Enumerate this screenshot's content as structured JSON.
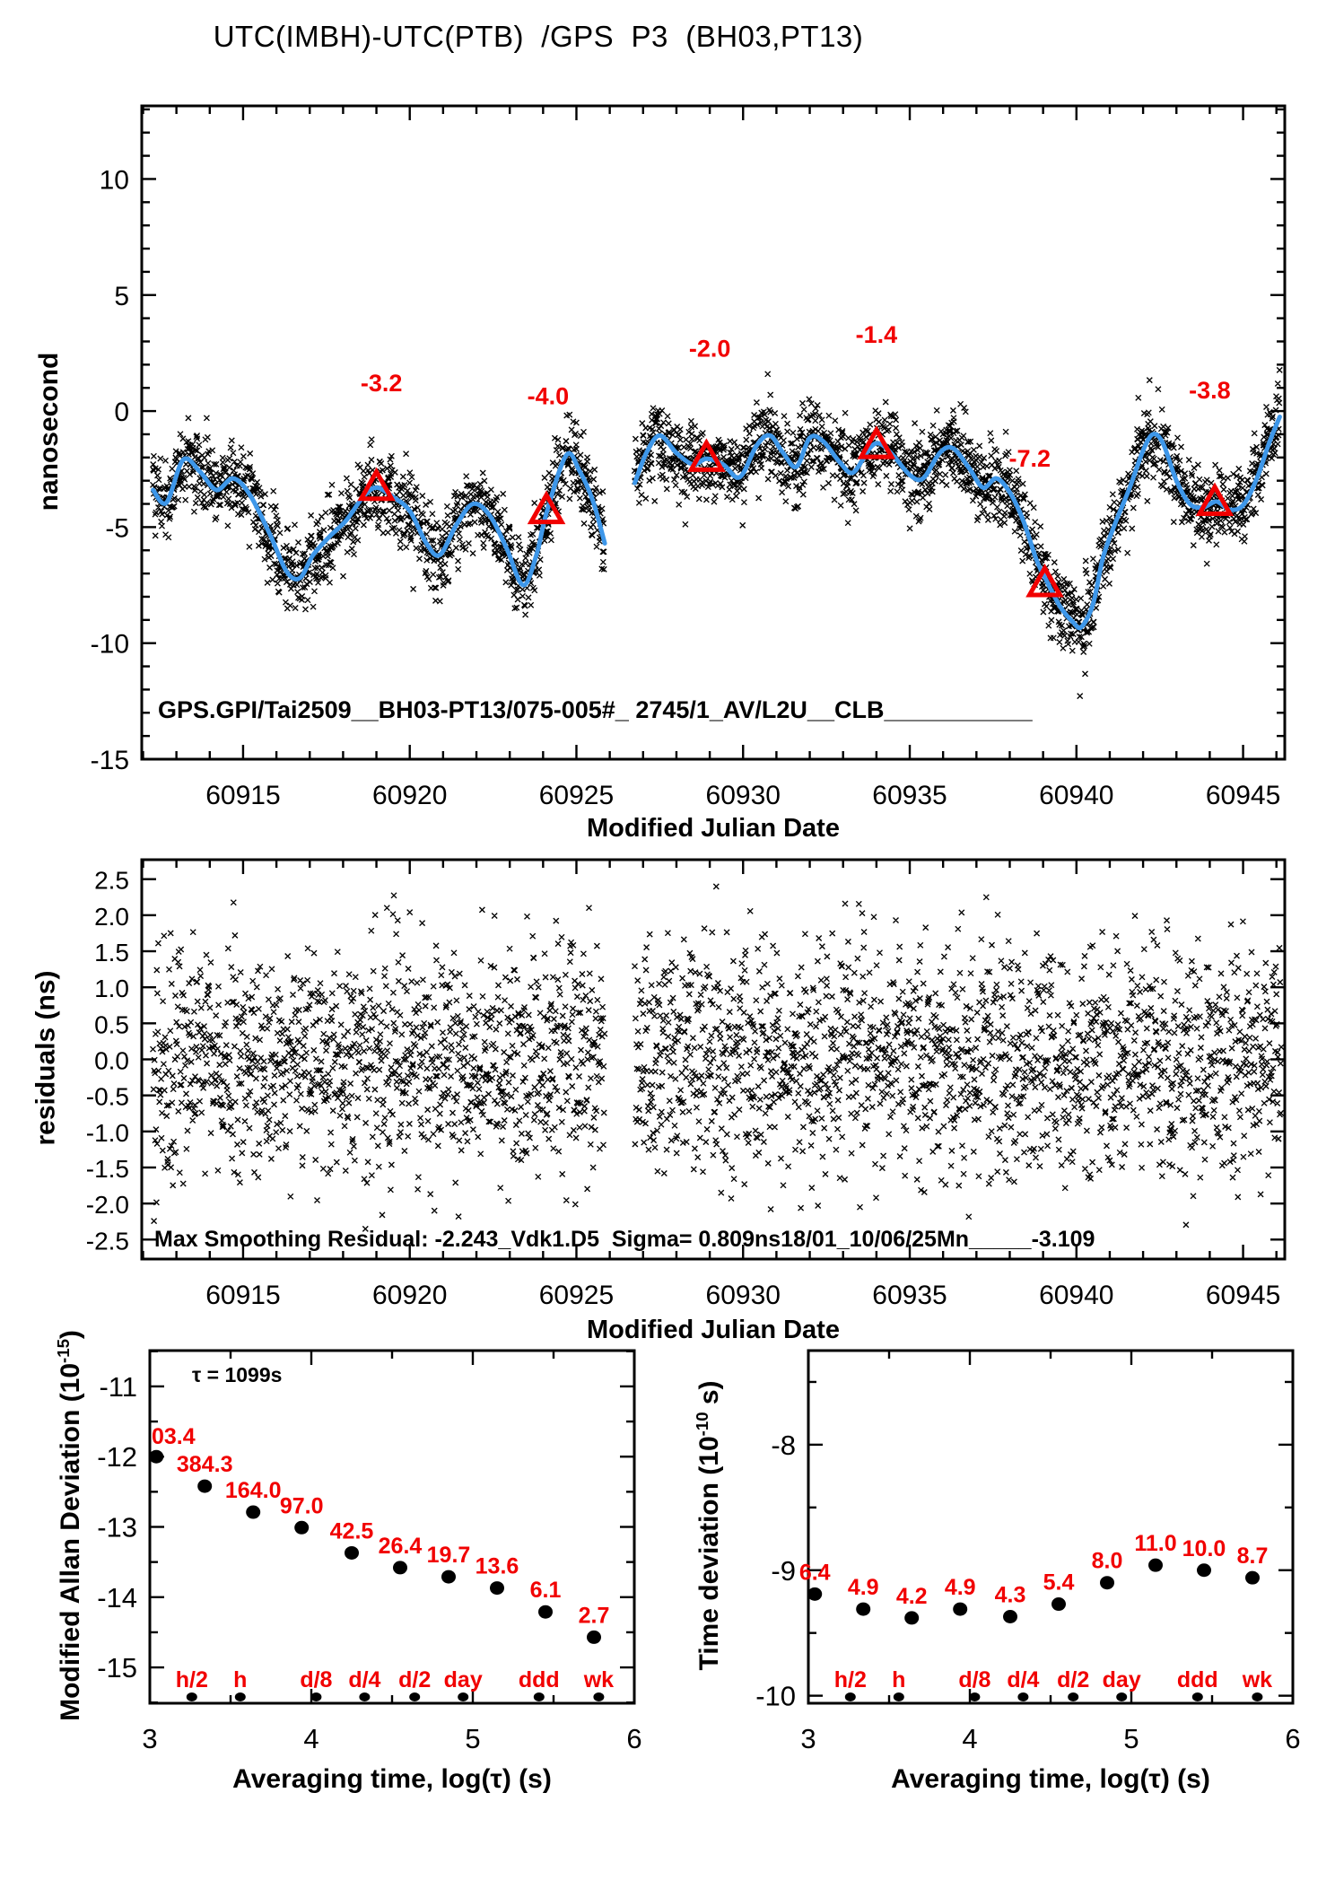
{
  "title": "UTC(IMBH)-UTC(PTB)  /GPS  P3  (BH03,PT13)",
  "colors": {
    "line": "#3e97e9",
    "annotation": "#f10000",
    "marker": "#000000"
  },
  "chart_data": [
    {
      "id": "phase",
      "type": "scatter",
      "title": "UTC(IMBH)-UTC(PTB)  /GPS  P3  (BH03,PT13)",
      "xlabel": "Modified Julian Date",
      "ylabel": "nanosecond",
      "xlim": [
        60911.96,
        60946.25
      ],
      "ylim": [
        -15,
        13.15
      ],
      "grid": false,
      "xticks": {
        "major": [
          {
            "v": 60915,
            "l": "60915"
          },
          {
            "v": 60920,
            "l": "60920"
          },
          {
            "v": 60925,
            "l": "60925"
          },
          {
            "v": 60930,
            "l": "60930"
          },
          {
            "v": 60935,
            "l": "60935"
          },
          {
            "v": 60940,
            "l": "60940"
          },
          {
            "v": 60945,
            "l": "60945"
          }
        ],
        "minor_step": 1
      },
      "yticks": {
        "major": [
          {
            "v": 10,
            "l": "10"
          },
          {
            "v": 5,
            "l": "5"
          },
          {
            "v": 0,
            "l": "0"
          },
          {
            "v": -5,
            "l": "-5"
          },
          {
            "v": -10,
            "l": "-10"
          },
          {
            "v": -15,
            "l": "-15"
          }
        ],
        "minor_step": 1
      },
      "info_text": "GPS.GPI/Tai2509__BH03-PT13/075-005#_ 2745/1_AV/L2U__CLB___________",
      "annotations": [
        {
          "label": "-3.2",
          "label_x": 60919.15,
          "label_y": 0.85,
          "tri_x": 60919.0,
          "tri_y": -3.35
        },
        {
          "label": "-4.0",
          "label_x": 60924.15,
          "label_y": 0.3,
          "tri_x": 60924.1,
          "tri_y": -4.35
        },
        {
          "label": "-2.0",
          "label_x": 60929.0,
          "label_y": 2.35,
          "tri_x": 60928.9,
          "tri_y": -2.1
        },
        {
          "label": "-1.4",
          "label_x": 60934.0,
          "label_y": 2.95,
          "tri_x": 60934.0,
          "tri_y": -1.55
        },
        {
          "label": "-7.2",
          "label_x": 60938.6,
          "label_y": -2.4,
          "tri_x": 60939.05,
          "tri_y": -7.5
        },
        {
          "label": "-3.8",
          "label_x": 60944.0,
          "label_y": 0.55,
          "tri_x": 60944.15,
          "tri_y": -4.0
        }
      ],
      "smooth_segments": [
        [
          [
            60912.3,
            -3.4
          ],
          [
            60912.7,
            -3.95
          ],
          [
            60913.2,
            -2.1
          ],
          [
            60913.7,
            -2.6
          ],
          [
            60914.2,
            -3.4
          ],
          [
            60914.7,
            -2.9
          ],
          [
            60915.2,
            -3.6
          ],
          [
            60915.8,
            -5.3
          ],
          [
            60916.3,
            -6.9
          ],
          [
            60916.7,
            -7.2
          ],
          [
            60917.1,
            -6.2
          ],
          [
            60917.6,
            -5.4
          ],
          [
            60918.1,
            -4.7
          ],
          [
            60918.6,
            -3.7
          ],
          [
            60919.0,
            -3.3
          ],
          [
            60919.5,
            -3.7
          ],
          [
            60920.0,
            -4.3
          ],
          [
            60920.5,
            -5.7
          ],
          [
            60920.9,
            -6.2
          ],
          [
            60921.4,
            -4.9
          ],
          [
            60921.9,
            -4.0
          ],
          [
            60922.4,
            -4.5
          ],
          [
            60922.9,
            -5.9
          ],
          [
            60923.4,
            -7.5
          ],
          [
            60923.8,
            -6.2
          ],
          [
            60924.1,
            -4.4
          ],
          [
            60924.7,
            -1.9
          ],
          [
            60925.1,
            -2.6
          ],
          [
            60925.5,
            -3.9
          ],
          [
            60925.85,
            -5.7
          ]
        ],
        [
          [
            60926.75,
            -3.1
          ],
          [
            60927.1,
            -1.8
          ],
          [
            60927.5,
            -1.05
          ],
          [
            60928.0,
            -1.8
          ],
          [
            60928.5,
            -2.3
          ],
          [
            60928.9,
            -2.05
          ],
          [
            60929.4,
            -2.3
          ],
          [
            60929.9,
            -2.85
          ],
          [
            60930.4,
            -1.5
          ],
          [
            60930.8,
            -1.05
          ],
          [
            60931.2,
            -1.8
          ],
          [
            60931.6,
            -2.4
          ],
          [
            60932.0,
            -1.15
          ],
          [
            60932.4,
            -1.3
          ],
          [
            60932.9,
            -2.2
          ],
          [
            60933.3,
            -2.65
          ],
          [
            60933.8,
            -1.6
          ],
          [
            60934.1,
            -1.4
          ],
          [
            60934.5,
            -1.9
          ],
          [
            60935.0,
            -2.75
          ],
          [
            60935.4,
            -2.9
          ],
          [
            60935.9,
            -1.8
          ],
          [
            60936.3,
            -1.6
          ],
          [
            60936.8,
            -2.5
          ],
          [
            60937.2,
            -3.3
          ],
          [
            60937.6,
            -2.9
          ],
          [
            60938.0,
            -3.5
          ],
          [
            60938.4,
            -4.7
          ],
          [
            60938.8,
            -6.4
          ],
          [
            60939.1,
            -7.3
          ],
          [
            60939.5,
            -8.4
          ],
          [
            60939.9,
            -9.1
          ],
          [
            60940.15,
            -9.3
          ],
          [
            60940.5,
            -8.3
          ],
          [
            60940.8,
            -6.3
          ],
          [
            60941.2,
            -4.7
          ],
          [
            60941.6,
            -3.3
          ],
          [
            60942.0,
            -1.7
          ],
          [
            60942.3,
            -1.0
          ],
          [
            60942.6,
            -1.4
          ],
          [
            60943.0,
            -3.0
          ],
          [
            60943.4,
            -4.0
          ],
          [
            60943.8,
            -4.15
          ],
          [
            60944.2,
            -3.9
          ],
          [
            60944.6,
            -4.25
          ],
          [
            60945.0,
            -4.05
          ],
          [
            60945.4,
            -2.95
          ],
          [
            60945.8,
            -1.3
          ],
          [
            60946.1,
            -0.25
          ]
        ]
      ],
      "scatter_params": {
        "step": 0.022,
        "sigma": 0.85,
        "seed": 1234567
      }
    },
    {
      "id": "residuals",
      "type": "scatter",
      "xlabel": "Modified Julian Date",
      "ylabel": "residuals (ns)",
      "xlim": [
        60911.96,
        60946.25
      ],
      "ylim": [
        -2.77,
        2.77
      ],
      "grid": false,
      "xticks": {
        "major": [
          {
            "v": 60915,
            "l": "60915"
          },
          {
            "v": 60920,
            "l": "60920"
          },
          {
            "v": 60925,
            "l": "60925"
          },
          {
            "v": 60930,
            "l": "60930"
          },
          {
            "v": 60935,
            "l": "60935"
          },
          {
            "v": 60940,
            "l": "60940"
          },
          {
            "v": 60945,
            "l": "60945"
          }
        ],
        "minor_step": 1
      },
      "yticks": {
        "major": [
          {
            "v": 2.5,
            "l": "2.5"
          },
          {
            "v": 2.0,
            "l": "2.0"
          },
          {
            "v": 1.5,
            "l": "1.5"
          },
          {
            "v": 1.0,
            "l": "1.0"
          },
          {
            "v": 0.5,
            "l": "0.5"
          },
          {
            "v": 0.0,
            "l": "0.0"
          },
          {
            "v": -0.5,
            "l": "-0.5"
          },
          {
            "v": -1.0,
            "l": "-1.0"
          },
          {
            "v": -1.5,
            "l": "-1.5"
          },
          {
            "v": -2.0,
            "l": "-2.0"
          },
          {
            "v": -2.5,
            "l": "-2.5"
          }
        ]
      },
      "info_text": "Max Smoothing Residual: -2.243_Vdk1.D5  Sigma= 0.809ns18/01_10/06/25Mn_____-3.109",
      "sigma_ns": 0.809,
      "segments": [
        [
          60912.3,
          60925.85
        ],
        [
          60926.75,
          60946.15
        ]
      ],
      "scatter_params": {
        "step": 0.011,
        "sigma": 0.809,
        "clip": 2.4,
        "seed": 424242
      }
    },
    {
      "id": "mdev",
      "type": "scatter",
      "xlabel": "Averaging time, log(τ) (s)",
      "ylabel_parts": {
        "pre": "Modified Allan Deviation (10",
        "sup": "-15",
        "post": ")"
      },
      "tau_note": "τ = 1099s",
      "xlim": [
        3,
        6
      ],
      "ylim": [
        -15.51,
        -10.49
      ],
      "grid": false,
      "xticks": {
        "major": [
          {
            "v": 3,
            "l": "3"
          },
          {
            "v": 4,
            "l": "4"
          },
          {
            "v": 5,
            "l": "5"
          },
          {
            "v": 6,
            "l": "6"
          }
        ],
        "minor_step": 0.5
      },
      "yticks": {
        "major": [
          {
            "v": -11,
            "l": "-11"
          },
          {
            "v": -12,
            "l": "-12"
          },
          {
            "v": -13,
            "l": "-13"
          },
          {
            "v": -14,
            "l": "-14"
          },
          {
            "v": -15,
            "l": "-15"
          }
        ],
        "minor_step": 0.5
      },
      "x": [
        3.04,
        3.34,
        3.64,
        3.94,
        4.25,
        4.55,
        4.85,
        5.15,
        5.45,
        5.75
      ],
      "y": [
        -12.0,
        -12.42,
        -12.79,
        -13.01,
        -13.37,
        -13.58,
        -13.71,
        -13.87,
        -14.21,
        -14.57
      ],
      "labels": [
        "03.4",
        "384.3",
        "164.0",
        "97.0",
        "42.5",
        "26.4",
        "19.7",
        "13.6",
        "6.1",
        "2.7"
      ],
      "first_label_clipped": true,
      "time_markers": {
        "labels": [
          "h/2",
          "h",
          "d/8",
          "d/4",
          "d/2",
          "day",
          "ddd",
          "wk"
        ],
        "x": [
          3.26,
          3.56,
          4.03,
          4.33,
          4.64,
          4.94,
          5.41,
          5.78
        ]
      }
    },
    {
      "id": "tdev",
      "type": "scatter",
      "xlabel": "Averaging time, log(τ) (s)",
      "ylabel_parts": {
        "pre": "Time deviation (10",
        "sup": "-10",
        "post": " s)"
      },
      "xlim": [
        3,
        6
      ],
      "ylim": [
        -10.06,
        -7.25
      ],
      "grid": false,
      "xticks": {
        "major": [
          {
            "v": 3,
            "l": "3"
          },
          {
            "v": 4,
            "l": "4"
          },
          {
            "v": 5,
            "l": "5"
          },
          {
            "v": 6,
            "l": "6"
          }
        ],
        "minor_step": 0.5
      },
      "yticks": {
        "major": [
          {
            "v": -8,
            "l": "-8"
          },
          {
            "v": -9,
            "l": "-9"
          },
          {
            "v": -10,
            "l": "-10"
          }
        ],
        "minor_step": 0.5
      },
      "x": [
        3.04,
        3.34,
        3.64,
        3.94,
        4.25,
        4.55,
        4.85,
        5.15,
        5.45,
        5.75
      ],
      "y": [
        -9.19,
        -9.31,
        -9.38,
        -9.31,
        -9.37,
        -9.27,
        -9.1,
        -8.96,
        -9.0,
        -9.06
      ],
      "labels": [
        "6.4",
        "4.9",
        "4.2",
        "4.9",
        "4.3",
        "5.4",
        "8.0",
        "11.0",
        "10.0",
        "8.7"
      ],
      "first_label_clipped": false,
      "time_markers": {
        "labels": [
          "h/2",
          "h",
          "d/8",
          "d/4",
          "d/2",
          "day",
          "ddd",
          "wk"
        ],
        "x": [
          3.26,
          3.56,
          4.03,
          4.33,
          4.64,
          4.94,
          5.41,
          5.78
        ]
      }
    }
  ]
}
